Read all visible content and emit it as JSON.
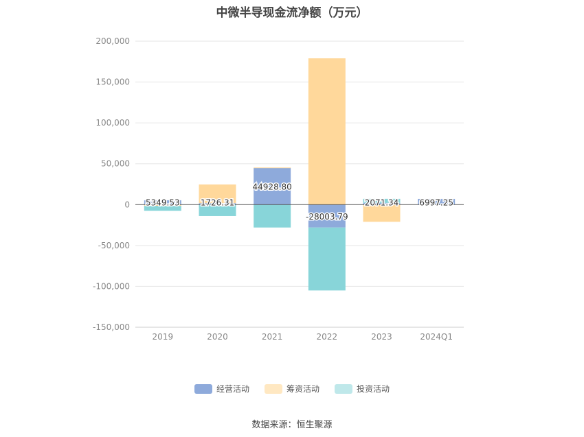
{
  "chart_data": {
    "type": "bar",
    "stacked": true,
    "title": "中微半导现金流净额（万元）",
    "xlabel": "",
    "ylabel": "",
    "categories": [
      "2019",
      "2020",
      "2021",
      "2022",
      "2023",
      "2024Q1"
    ],
    "ylim": [
      -150000,
      200000
    ],
    "yticks": [
      200000,
      150000,
      100000,
      50000,
      0,
      -50000,
      -100000,
      -150000
    ],
    "ytick_labels": [
      "200,000",
      "150,000",
      "100,000",
      "50,000",
      "0",
      "-50,000",
      "-100,000",
      "-150,000"
    ],
    "grid": true,
    "legend_position": "bottom",
    "series": [
      {
        "name": "经营活动",
        "color": "#8eaadb",
        "values": [
          5349.53,
          1726.31,
          44928.8,
          -28003.79,
          2071.34,
          6997.25
        ]
      },
      {
        "name": "筹资活动",
        "color": "#ffd89b",
        "values": [
          -1500,
          23000,
          500,
          179000,
          -21000,
          0
        ]
      },
      {
        "name": "投资活动",
        "color": "#88d5d9",
        "values": [
          -6000,
          -14000,
          -28000,
          -77000,
          5000,
          0
        ]
      }
    ],
    "data_labels": [
      "5349.53",
      "1726.31",
      "44928.80",
      "-28003.79",
      "2071.34",
      "6997.25"
    ],
    "source": "数据来源：恒生聚源"
  }
}
